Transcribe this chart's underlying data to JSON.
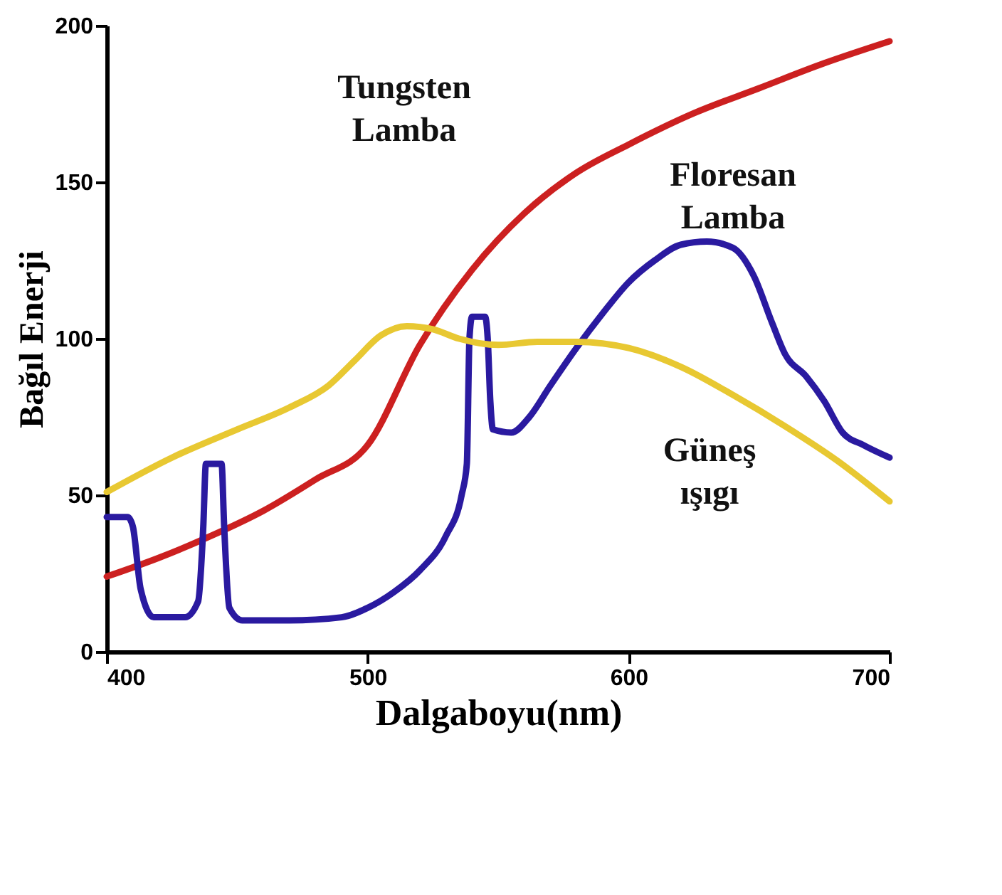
{
  "chart_data": {
    "type": "line",
    "xlabel": "Dalgaboyu(nm)",
    "ylabel": "Bağıl Enerji",
    "xlim": [
      400,
      700
    ],
    "ylim": [
      0,
      200
    ],
    "xticks": [
      400,
      500,
      600,
      700
    ],
    "yticks": [
      0,
      50,
      100,
      150,
      200
    ],
    "series": [
      {
        "name": "Tungsten Lamba",
        "color": "#cc2020",
        "x": [
          400,
          420,
          440,
          460,
          480,
          500,
          520,
          540,
          560,
          580,
          600,
          625,
          650,
          675,
          700
        ],
        "values": [
          24,
          30,
          37,
          45,
          55,
          66,
          98,
          122,
          140,
          153,
          162,
          172,
          180,
          188,
          195
        ]
      },
      {
        "name": "Floresan Lamba",
        "color": "#2a1aa0",
        "x": [
          400,
          408,
          410,
          413,
          418,
          430,
          435,
          437,
          438,
          444,
          445,
          447,
          452,
          470,
          490,
          500,
          510,
          520,
          530,
          536,
          538,
          539,
          540,
          545,
          546,
          547,
          548,
          555,
          562,
          570,
          580,
          590,
          600,
          610,
          620,
          630,
          640,
          648,
          655,
          660,
          668,
          675,
          682,
          690,
          700
        ],
        "values": [
          43,
          43,
          40,
          20,
          11,
          11,
          16,
          40,
          60,
          60,
          40,
          14,
          10,
          10,
          11,
          14,
          19,
          26,
          37,
          50,
          60,
          100,
          107,
          107,
          100,
          80,
          71,
          70,
          75,
          85,
          97,
          108,
          118,
          125,
          130,
          131,
          129,
          120,
          105,
          95,
          88,
          80,
          70,
          66,
          62
        ]
      },
      {
        "name": "Güneş ışıgı",
        "color": "#e8c832",
        "x": [
          400,
          425,
          450,
          470,
          485,
          495,
          505,
          515,
          525,
          535,
          550,
          565,
          580,
          600,
          620,
          640,
          660,
          680,
          700
        ],
        "values": [
          51,
          62,
          71,
          78,
          85,
          93,
          101,
          104,
          103,
          100,
          98,
          99,
          99,
          97,
          91,
          82,
          72,
          61,
          48
        ]
      }
    ]
  }
}
